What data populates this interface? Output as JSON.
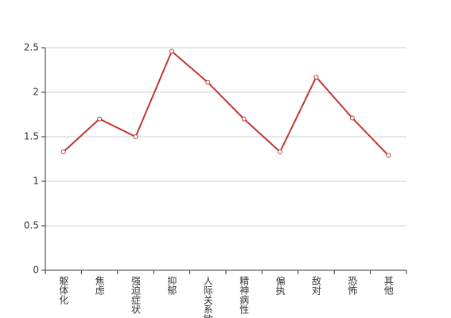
{
  "chart_data": {
    "type": "line",
    "categories": [
      "躯体化",
      "焦虑",
      "强迫症状",
      "抑郁",
      "人际关系敏感",
      "精神病性",
      "偏执",
      "敌对",
      "恐怖",
      "其他"
    ],
    "series": [
      {
        "color": "#c23531",
        "values": [
          1.33,
          1.7,
          1.5,
          2.46,
          2.11,
          1.7,
          1.33,
          2.17,
          1.71,
          1.29
        ]
      }
    ],
    "ylim": [
      0,
      2.5
    ],
    "yticks": [
      0,
      0.5,
      1,
      1.5,
      2,
      2.5
    ],
    "grid": true
  }
}
